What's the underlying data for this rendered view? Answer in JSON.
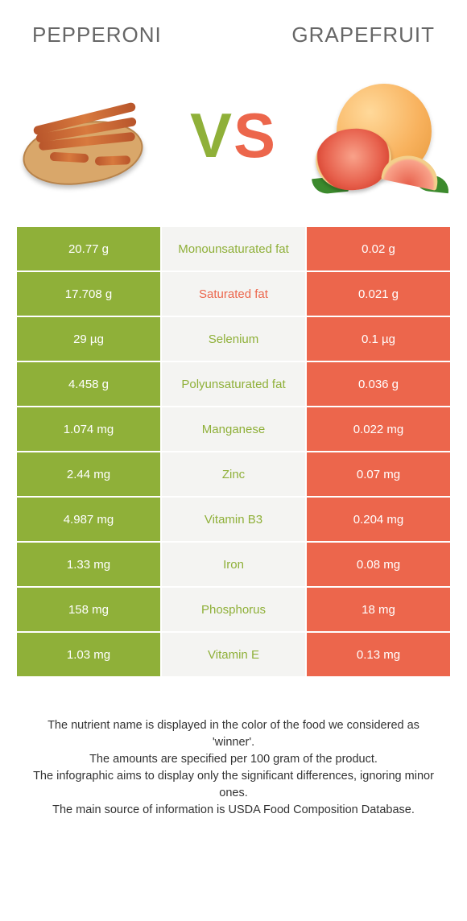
{
  "food_a": {
    "name": "Pepperoni",
    "color": "#8fb039"
  },
  "food_b": {
    "name": "Grapefruit",
    "color": "#ec664c"
  },
  "vs_label": "VS",
  "colors": {
    "mid_bg": "#f4f4f2",
    "mid_text_a": "#8fb039",
    "mid_text_b": "#ec664c",
    "row_border": "#ffffff",
    "footer_text": "#333333",
    "title_text": "#666666"
  },
  "rows": [
    {
      "a": "20.77 g",
      "label": "Monounsaturated fat",
      "b": "0.02 g",
      "winner": "a"
    },
    {
      "a": "17.708 g",
      "label": "Saturated fat",
      "b": "0.021 g",
      "winner": "b"
    },
    {
      "a": "29 µg",
      "label": "Selenium",
      "b": "0.1 µg",
      "winner": "a"
    },
    {
      "a": "4.458 g",
      "label": "Polyunsaturated fat",
      "b": "0.036 g",
      "winner": "a"
    },
    {
      "a": "1.074 mg",
      "label": "Manganese",
      "b": "0.022 mg",
      "winner": "a"
    },
    {
      "a": "2.44 mg",
      "label": "Zinc",
      "b": "0.07 mg",
      "winner": "a"
    },
    {
      "a": "4.987 mg",
      "label": "Vitamin B3",
      "b": "0.204 mg",
      "winner": "a"
    },
    {
      "a": "1.33 mg",
      "label": "Iron",
      "b": "0.08 mg",
      "winner": "a"
    },
    {
      "a": "158 mg",
      "label": "Phosphorus",
      "b": "18 mg",
      "winner": "a"
    },
    {
      "a": "1.03 mg",
      "label": "Vitamin E",
      "b": "0.13 mg",
      "winner": "a"
    }
  ],
  "footer_lines": [
    "The nutrient name is displayed in the color of the food we considered as 'winner'.",
    "The amounts are specified per 100 gram of the product.",
    "The infographic aims to display only the significant differences, ignoring minor ones.",
    "The main source of information is USDA Food Composition Database."
  ]
}
